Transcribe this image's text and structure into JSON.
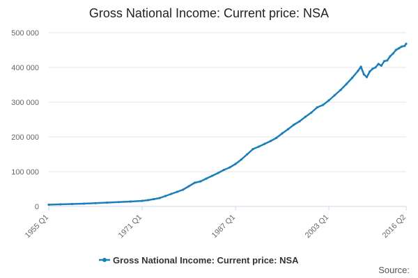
{
  "chart_data": {
    "type": "line",
    "title": "Gross National Income: Current price: NSA",
    "xlabel": "",
    "ylabel": "",
    "ylim": [
      0,
      500000
    ],
    "y_ticks": [
      "0",
      "100 000",
      "200 000",
      "300 000",
      "400 000",
      "500 000"
    ],
    "y_tick_values": [
      0,
      100000,
      200000,
      300000,
      400000,
      500000
    ],
    "x_range": [
      "1955 Q1",
      "2016 Q2"
    ],
    "x_ticks": [
      "1955 Q1",
      "1971 Q1",
      "1987 Q1",
      "2003 Q1",
      "2016 Q2"
    ],
    "grid": "horizontal",
    "legend_position": "bottom-center",
    "series": [
      {
        "name": "Gross National Income: Current price: NSA",
        "color": "#1a7fb8",
        "x": [
          "1955 Q1",
          "1957 Q1",
          "1959 Q1",
          "1961 Q1",
          "1963 Q1",
          "1965 Q1",
          "1967 Q1",
          "1969 Q1",
          "1971 Q1",
          "1972 Q1",
          "1973 Q1",
          "1974 Q1",
          "1975 Q1",
          "1976 Q1",
          "1977 Q1",
          "1978 Q1",
          "1979 Q1",
          "1980 Q1",
          "1981 Q1",
          "1982 Q1",
          "1983 Q1",
          "1984 Q1",
          "1985 Q1",
          "1986 Q1",
          "1987 Q1",
          "1988 Q1",
          "1989 Q1",
          "1990 Q1",
          "1991 Q1",
          "1992 Q1",
          "1993 Q1",
          "1994 Q1",
          "1995 Q1",
          "1996 Q1",
          "1997 Q1",
          "1998 Q1",
          "1999 Q1",
          "2000 Q1",
          "2001 Q1",
          "2002 Q1",
          "2003 Q1",
          "2004 Q1",
          "2005 Q1",
          "2006 Q1",
          "2007 Q1",
          "2008 Q1",
          "2008 Q3",
          "2009 Q1",
          "2009 Q3",
          "2010 Q1",
          "2010 Q3",
          "2011 Q1",
          "2011 Q3",
          "2012 Q1",
          "2012 Q3",
          "2013 Q1",
          "2013 Q3",
          "2014 Q1",
          "2014 Q3",
          "2015 Q1",
          "2015 Q3",
          "2016 Q1",
          "2016 Q2"
        ],
        "values": [
          5000,
          6000,
          7000,
          8000,
          9500,
          11000,
          12500,
          14000,
          16000,
          18000,
          21000,
          24000,
          30000,
          36000,
          42000,
          48000,
          58000,
          68000,
          72000,
          80000,
          88000,
          96000,
          105000,
          112000,
          122000,
          135000,
          150000,
          165000,
          172000,
          180000,
          188000,
          197000,
          210000,
          222000,
          235000,
          245000,
          258000,
          270000,
          285000,
          292000,
          305000,
          320000,
          335000,
          352000,
          370000,
          390000,
          402000,
          380000,
          372000,
          388000,
          396000,
          400000,
          410000,
          405000,
          418000,
          420000,
          432000,
          440000,
          450000,
          455000,
          460000,
          462000,
          468000
        ]
      }
    ],
    "credits": "Source:"
  }
}
